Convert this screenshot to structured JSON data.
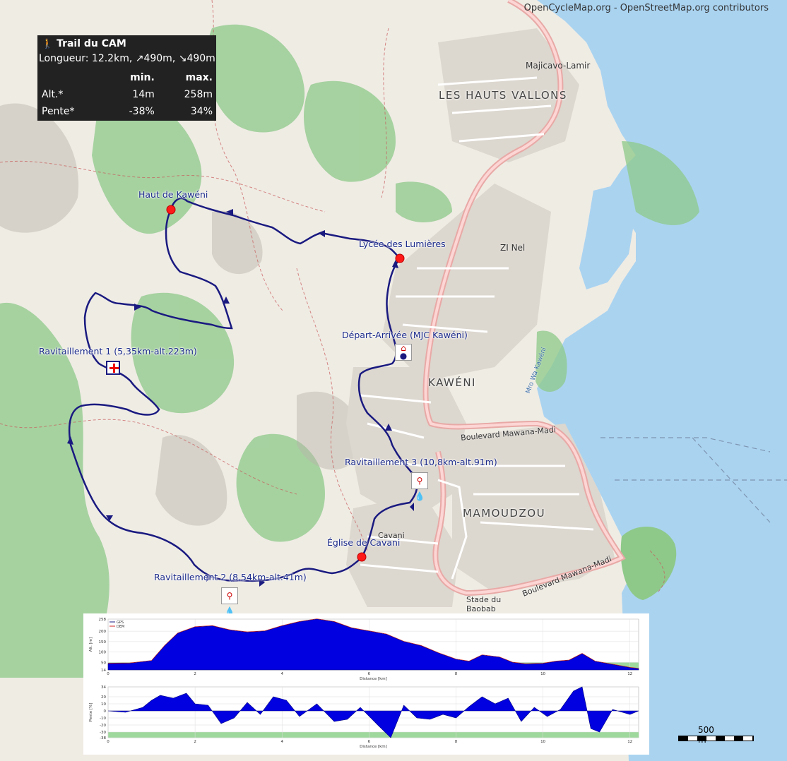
{
  "attribution": "OpenCycleMap.org - OpenStreetMap.org contributors",
  "info": {
    "title": "Trail du CAM",
    "length": "Longueur: 12.2km, ↗490m, ↘490m",
    "col_min": "min.",
    "col_max": "max.",
    "rows": [
      {
        "label": "Alt.*",
        "min": "14m",
        "max": "258m"
      },
      {
        "label": "Pente*",
        "min": "-38%",
        "max": "34%"
      }
    ]
  },
  "pois": {
    "haut": "Haut de Kawéni",
    "lycee": "Lycée des Lumières",
    "depart": "Départ-Arrivée (MJC Kawéni)",
    "ravito1": "Ravitaillement 1 (5,35km-alt.223m)",
    "ravito2": "Ravitaillement 2 (8,54km-alt.41m)",
    "ravito3": "Ravitaillement 3 (10,8km-alt.91m)",
    "eglise": "Église de Cavani"
  },
  "places": {
    "majicavo": "Majicavo-Lamir",
    "hauts_vallons": "LES HAUTS VALLONS",
    "zi_nel": "ZI Nel",
    "kaweni": "KAWÉNI",
    "mamoudzou": "MAMOUDZOU",
    "cavani": "Cavani",
    "stade": "Stade du Baobab",
    "boulevard1": "Boulevard Mawana-Madi",
    "boulevard2": "Boulevard Mawana-Madi",
    "mro": "Mro Wa Kawéni"
  },
  "scale_label": "500 m",
  "colors": {
    "water": "#aad3f0",
    "route": "#1a1a80",
    "green": "#8ec98a",
    "marker": "#ff1a1a"
  },
  "chart_data": [
    {
      "type": "area",
      "ylabel": "Alt. [m]",
      "xlabel": "Distance [km]",
      "legend": [
        "GPS",
        "DEM"
      ],
      "xlim": [
        0,
        12.2
      ],
      "ylim": [
        14,
        258
      ],
      "y_ticks": [
        258,
        200,
        150,
        100,
        50,
        14
      ],
      "x_ticks": [
        0,
        2,
        4,
        6,
        8,
        10,
        12
      ],
      "x": [
        0,
        0.5,
        1.0,
        1.3,
        1.6,
        2.0,
        2.4,
        2.8,
        3.2,
        3.6,
        4.0,
        4.4,
        4.8,
        5.2,
        5.6,
        6.0,
        6.4,
        6.8,
        7.2,
        7.6,
        8.0,
        8.3,
        8.6,
        9.0,
        9.3,
        9.6,
        10.0,
        10.3,
        10.6,
        10.9,
        11.2,
        11.6,
        12.0,
        12.2
      ],
      "y": [
        45,
        46,
        58,
        130,
        190,
        220,
        225,
        205,
        195,
        200,
        225,
        245,
        258,
        245,
        215,
        200,
        185,
        150,
        130,
        95,
        65,
        55,
        85,
        75,
        50,
        42,
        45,
        55,
        60,
        92,
        55,
        40,
        25,
        20
      ]
    },
    {
      "type": "area",
      "ylabel": "Pente [%]",
      "xlabel": "Distance [km]",
      "xlim": [
        0,
        12.2
      ],
      "ylim": [
        -38,
        34
      ],
      "y_ticks": [
        34,
        20,
        10,
        0,
        -10,
        -20,
        -30,
        -38
      ],
      "x_ticks": [
        0,
        2,
        4,
        6,
        8,
        10,
        12
      ],
      "x": [
        0,
        0.4,
        0.8,
        1.0,
        1.2,
        1.5,
        1.8,
        2.0,
        2.3,
        2.6,
        2.9,
        3.2,
        3.5,
        3.8,
        4.1,
        4.4,
        4.8,
        5.2,
        5.5,
        5.8,
        6.2,
        6.5,
        6.8,
        7.1,
        7.4,
        7.7,
        8.0,
        8.3,
        8.6,
        8.9,
        9.2,
        9.5,
        9.8,
        10.1,
        10.4,
        10.7,
        10.9,
        11.1,
        11.3,
        11.6,
        12.0,
        12.2
      ],
      "y": [
        0,
        -2,
        5,
        15,
        22,
        18,
        25,
        10,
        8,
        -18,
        -10,
        12,
        -5,
        20,
        15,
        -8,
        10,
        -15,
        -12,
        5,
        -20,
        -38,
        8,
        -10,
        -12,
        -5,
        -10,
        6,
        20,
        10,
        18,
        -15,
        5,
        -8,
        2,
        28,
        34,
        -25,
        -30,
        2,
        -5,
        0
      ]
    }
  ]
}
